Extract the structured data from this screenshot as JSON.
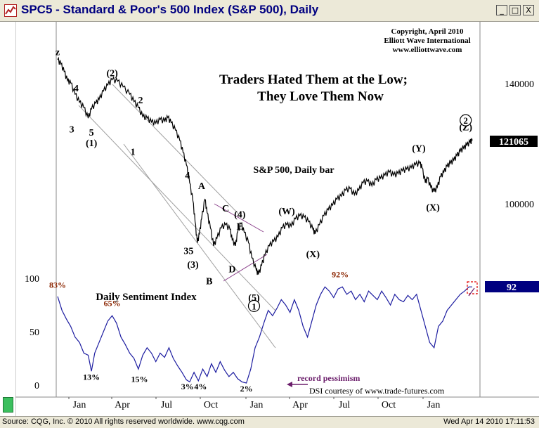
{
  "window": {
    "title": "SPC5 - Standard & Poor's 500 Index (S&P 500), Daily",
    "minimize": "_",
    "maximize": "□",
    "close": "X",
    "icon": "chart-app-icon"
  },
  "status": {
    "left": "Source: CQG, Inc. © 2010 All rights reserved worldwide. www.cqg.com",
    "right": "Wed Apr 14 2010 17:11:53"
  },
  "chart_data": {
    "type": "line",
    "title": "Traders Hated Them at the Low; They Love Them Now",
    "title_lines": [
      "Traders Hated Them at the Low;",
      "They Love Them Now"
    ],
    "subtitle": "S&P 500, Daily bar",
    "copyright_lines": [
      "Copyright, April 2010",
      "Elliott Wave International",
      "www.elliottwave.com"
    ],
    "price_axis": {
      "ticks": [
        100000,
        140000
      ],
      "tick_labels": [
        "100000",
        "140000"
      ],
      "last_value": 121065,
      "last_label": "121065"
    },
    "sentiment_axis": {
      "ticks": [
        0,
        50,
        100
      ],
      "tick_labels": [
        "0",
        "50",
        "100"
      ],
      "last_value": 92,
      "last_label": "92"
    },
    "x_tick_labels": [
      "Jan",
      "Apr",
      "Jul",
      "Oct",
      "Jan",
      "Apr",
      "Jul",
      "Oct",
      "Jan"
    ],
    "price_series": {
      "name": "S&P 500",
      "color": "#000000",
      "points": [
        [
          0,
          148000
        ],
        [
          3,
          146500
        ],
        [
          6,
          144000
        ],
        [
          9,
          141000
        ],
        [
          12,
          140200
        ],
        [
          16,
          136500
        ],
        [
          20,
          133800
        ],
        [
          24,
          132000
        ],
        [
          28,
          128500
        ],
        [
          31,
          131500
        ],
        [
          35,
          133500
        ],
        [
          38,
          134700
        ],
        [
          42,
          137500
        ],
        [
          46,
          139500
        ],
        [
          50,
          141300
        ],
        [
          55,
          140800
        ],
        [
          60,
          138900
        ],
        [
          66,
          136500
        ],
        [
          70,
          134000
        ],
        [
          74,
          132000
        ],
        [
          78,
          129000
        ],
        [
          82,
          128500
        ],
        [
          86,
          127200
        ],
        [
          90,
          126800
        ],
        [
          94,
          128000
        ],
        [
          98,
          127500
        ],
        [
          101,
          128700
        ],
        [
          104,
          127000
        ],
        [
          108,
          124500
        ],
        [
          112,
          121000
        ],
        [
          115,
          117000
        ],
        [
          118,
          113000
        ],
        [
          121,
          107000
        ],
        [
          124,
          101000
        ],
        [
          126,
          94000
        ],
        [
          128,
          87000
        ],
        [
          130,
          90000
        ],
        [
          132,
          95000
        ],
        [
          135,
          101500
        ],
        [
          137,
          97000
        ],
        [
          140,
          92000
        ],
        [
          143,
          86000
        ],
        [
          146,
          88500
        ],
        [
          150,
          92000
        ],
        [
          154,
          93000
        ],
        [
          158,
          91500
        ],
        [
          160,
          88000
        ],
        [
          163,
          86000
        ],
        [
          165,
          90500
        ],
        [
          168,
          93500
        ],
        [
          171,
          90500
        ],
        [
          175,
          87000
        ],
        [
          178,
          82000
        ],
        [
          182,
          78000
        ],
        [
          184,
          76500
        ],
        [
          187,
          79500
        ],
        [
          190,
          83000
        ],
        [
          194,
          86000
        ],
        [
          198,
          87500
        ],
        [
          202,
          89000
        ],
        [
          206,
          92000
        ],
        [
          210,
          93000
        ],
        [
          214,
          92500
        ],
        [
          218,
          95000
        ],
        [
          222,
          96000
        ],
        [
          226,
          95500
        ],
        [
          230,
          94000
        ],
        [
          234,
          91500
        ],
        [
          236,
          90000
        ],
        [
          240,
          93000
        ],
        [
          244,
          96000
        ],
        [
          248,
          98000
        ],
        [
          252,
          99500
        ],
        [
          256,
          101500
        ],
        [
          260,
          102500
        ],
        [
          264,
          104500
        ],
        [
          268,
          105000
        ],
        [
          272,
          103000
        ],
        [
          276,
          104500
        ],
        [
          280,
          107000
        ],
        [
          284,
          107500
        ],
        [
          288,
          106000
        ],
        [
          292,
          108000
        ],
        [
          296,
          108500
        ],
        [
          300,
          109500
        ],
        [
          304,
          110500
        ],
        [
          308,
          109500
        ],
        [
          312,
          110000
        ],
        [
          316,
          111000
        ],
        [
          320,
          111500
        ],
        [
          324,
          112000
        ],
        [
          328,
          113000
        ],
        [
          332,
          113500
        ],
        [
          334,
          112000
        ],
        [
          337,
          107000
        ],
        [
          339,
          108500
        ],
        [
          342,
          105500
        ],
        [
          345,
          104000
        ],
        [
          348,
          105500
        ],
        [
          351,
          109000
        ],
        [
          354,
          110500
        ],
        [
          357,
          112500
        ],
        [
          360,
          113500
        ],
        [
          363,
          114500
        ],
        [
          366,
          116000
        ],
        [
          369,
          117500
        ],
        [
          372,
          118500
        ],
        [
          375,
          119500
        ],
        [
          378,
          120500
        ],
        [
          380,
          121065
        ]
      ]
    },
    "sentiment_series": {
      "name": "Daily Sentiment Index",
      "color": "#1c1ca0",
      "points": [
        [
          0,
          83
        ],
        [
          4,
          70
        ],
        [
          8,
          62
        ],
        [
          12,
          55
        ],
        [
          16,
          45
        ],
        [
          20,
          40
        ],
        [
          24,
          30
        ],
        [
          28,
          28
        ],
        [
          31,
          13
        ],
        [
          34,
          30
        ],
        [
          38,
          40
        ],
        [
          42,
          50
        ],
        [
          46,
          60
        ],
        [
          50,
          65
        ],
        [
          54,
          58
        ],
        [
          58,
          45
        ],
        [
          62,
          38
        ],
        [
          66,
          30
        ],
        [
          70,
          25
        ],
        [
          74,
          15
        ],
        [
          78,
          28
        ],
        [
          82,
          35
        ],
        [
          86,
          30
        ],
        [
          90,
          22
        ],
        [
          94,
          30
        ],
        [
          98,
          26
        ],
        [
          102,
          35
        ],
        [
          106,
          25
        ],
        [
          110,
          18
        ],
        [
          114,
          12
        ],
        [
          118,
          5
        ],
        [
          121,
          3
        ],
        [
          125,
          12
        ],
        [
          129,
          4
        ],
        [
          133,
          15
        ],
        [
          137,
          8
        ],
        [
          141,
          20
        ],
        [
          145,
          12
        ],
        [
          149,
          22
        ],
        [
          153,
          14
        ],
        [
          157,
          8
        ],
        [
          161,
          12
        ],
        [
          165,
          6
        ],
        [
          169,
          3
        ],
        [
          173,
          2
        ],
        [
          177,
          15
        ],
        [
          181,
          35
        ],
        [
          185,
          45
        ],
        [
          189,
          58
        ],
        [
          193,
          70
        ],
        [
          197,
          65
        ],
        [
          201,
          72
        ],
        [
          205,
          80
        ],
        [
          209,
          75
        ],
        [
          213,
          68
        ],
        [
          217,
          80
        ],
        [
          221,
          70
        ],
        [
          225,
          55
        ],
        [
          229,
          45
        ],
        [
          233,
          60
        ],
        [
          237,
          75
        ],
        [
          241,
          85
        ],
        [
          245,
          92
        ],
        [
          249,
          88
        ],
        [
          253,
          82
        ],
        [
          257,
          90
        ],
        [
          261,
          92
        ],
        [
          265,
          85
        ],
        [
          269,
          88
        ],
        [
          273,
          80
        ],
        [
          277,
          85
        ],
        [
          281,
          78
        ],
        [
          285,
          88
        ],
        [
          289,
          84
        ],
        [
          293,
          80
        ],
        [
          297,
          88
        ],
        [
          301,
          82
        ],
        [
          305,
          75
        ],
        [
          309,
          85
        ],
        [
          313,
          80
        ],
        [
          317,
          78
        ],
        [
          321,
          84
        ],
        [
          325,
          80
        ],
        [
          329,
          85
        ],
        [
          333,
          70
        ],
        [
          337,
          55
        ],
        [
          341,
          40
        ],
        [
          345,
          35
        ],
        [
          349,
          55
        ],
        [
          353,
          60
        ],
        [
          357,
          70
        ],
        [
          361,
          75
        ],
        [
          365,
          80
        ],
        [
          369,
          85
        ],
        [
          373,
          88
        ],
        [
          377,
          92
        ],
        [
          380,
          92
        ]
      ]
    },
    "channel_lines_color": "#a0a0a0",
    "triangle_color": "#8a3f8a",
    "wave_labels": [
      {
        "text": "z",
        "t": 0,
        "v": 148500,
        "pos": "above"
      },
      {
        "text": "4",
        "t": 17,
        "v": 136500,
        "pos": "above"
      },
      {
        "text": "3",
        "t": 13,
        "v": 127000,
        "pos": "below"
      },
      {
        "text": "5",
        "t": 31,
        "v": 126000,
        "pos": "below"
      },
      {
        "text": "(1)",
        "t": 31,
        "v": 122500,
        "pos": "below"
      },
      {
        "text": "(2)",
        "t": 50,
        "v": 141500,
        "pos": "above"
      },
      {
        "text": "2",
        "t": 76,
        "v": 132500,
        "pos": "above"
      },
      {
        "text": "1",
        "t": 69,
        "v": 119500,
        "pos": "below"
      },
      {
        "text": "4",
        "t": 119,
        "v": 107500,
        "pos": "above"
      },
      {
        "text": "A",
        "t": 132,
        "v": 104000,
        "pos": "above"
      },
      {
        "text": "C",
        "t": 154,
        "v": 96500,
        "pos": "above"
      },
      {
        "text": "(4)",
        "t": 167,
        "v": 94500,
        "pos": "above"
      },
      {
        "text": "E",
        "t": 167,
        "v": 90500,
        "pos": "above"
      },
      {
        "text": "35",
        "t": 120,
        "v": 86500,
        "pos": "below"
      },
      {
        "text": "(3)",
        "t": 124,
        "v": 82000,
        "pos": "below"
      },
      {
        "text": "D",
        "t": 160,
        "v": 80500,
        "pos": "below"
      },
      {
        "text": "B",
        "t": 139,
        "v": 76500,
        "pos": "below"
      },
      {
        "text": "(5)",
        "t": 180,
        "v": 71000,
        "pos": "below"
      },
      {
        "text": "(W)",
        "t": 210,
        "v": 95500,
        "pos": "above"
      },
      {
        "text": "(X)",
        "t": 234,
        "v": 85500,
        "pos": "below"
      },
      {
        "text": "(Y)",
        "t": 331,
        "v": 116500,
        "pos": "above"
      },
      {
        "text": "(X)",
        "t": 344,
        "v": 101000,
        "pos": "below"
      },
      {
        "text": "(Z)",
        "t": 374,
        "v": 123500,
        "pos": "above"
      }
    ],
    "circled_labels": [
      {
        "text": "1",
        "t": 180,
        "v": 66000
      },
      {
        "text": "2",
        "t": 374,
        "v": 127800
      }
    ],
    "sentiment_labels": [
      {
        "text": "83%",
        "t": 0,
        "v": 91,
        "color": "#8b2500"
      },
      {
        "text": "65%",
        "t": 50,
        "v": 74,
        "color": "#8b2500"
      },
      {
        "text": "92%",
        "t": 259,
        "v": 101,
        "color": "#8b2500"
      },
      {
        "text": "13%",
        "t": 31,
        "v": 5,
        "color": "#000000"
      },
      {
        "text": "15%",
        "t": 75,
        "v": 3,
        "color": "#000000"
      },
      {
        "text": "3%",
        "t": 119,
        "v": -4,
        "color": "#000000"
      },
      {
        "text": "4%",
        "t": 131,
        "v": -4,
        "color": "#000000"
      },
      {
        "text": "2%",
        "t": 173,
        "v": -6,
        "color": "#000000"
      }
    ],
    "sentiment_title": "Daily Sentiment Index",
    "record_pessimism": "record pessimism",
    "dsi_credit": "DSI courtesy of  www.trade-futures.com"
  }
}
